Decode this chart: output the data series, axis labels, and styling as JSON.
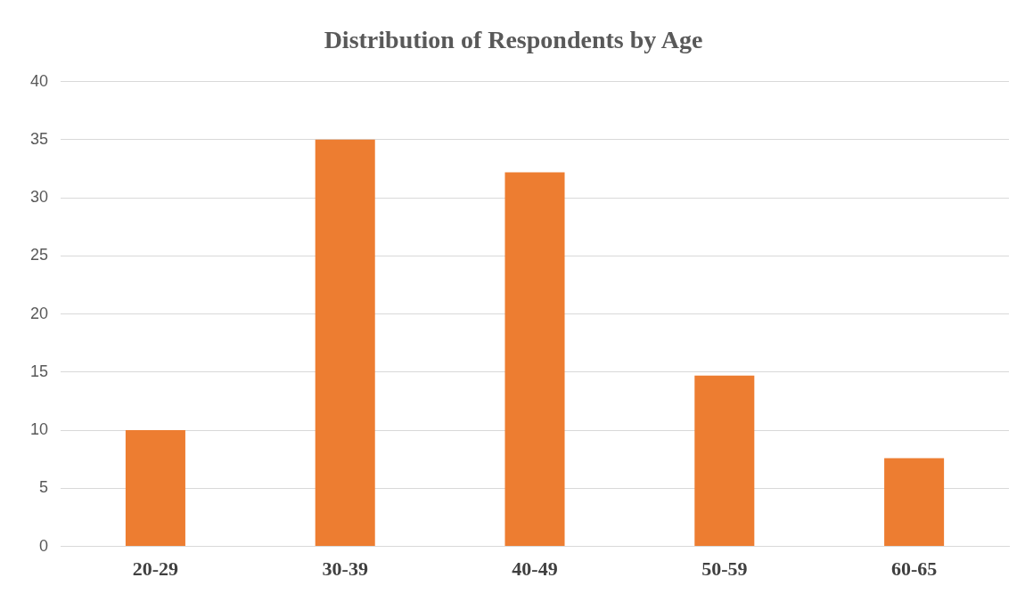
{
  "chart_data": {
    "type": "bar",
    "title": "Distribution of Respondents by Age",
    "categories": [
      "20-29",
      "30-39",
      "40-49",
      "50-59",
      "60-65"
    ],
    "values": [
      10,
      35,
      32.2,
      14.7,
      7.6
    ],
    "color": "#ed7d31",
    "ylim": [
      0,
      40
    ],
    "yticks": [
      0,
      5,
      10,
      15,
      20,
      25,
      30,
      35,
      40
    ],
    "grid": "y",
    "legend": false
  }
}
